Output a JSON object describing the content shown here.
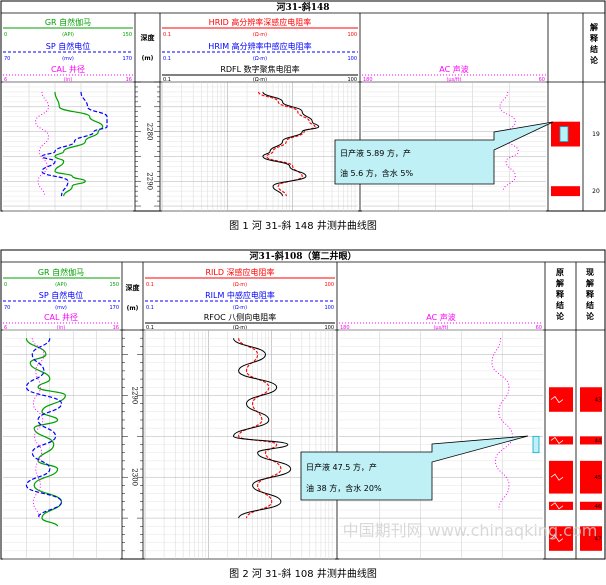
{
  "charts": [
    {
      "title": "河31-斜148",
      "caption": "图 1 河 31-斜 148 井测井曲线图",
      "headers": {
        "gr": {
          "label": "GR 自然伽马",
          "unit": "(API)",
          "min": "0",
          "max": "150"
        },
        "sp": {
          "label": "SP 自然电位",
          "unit": "(mv)",
          "min": "70",
          "max": "170"
        },
        "cal": {
          "label": "CAL 井径",
          "unit": "(in)",
          "min": "6",
          "max": "16"
        },
        "depth": {
          "label": "深度",
          "unit": "(m)"
        },
        "rhigh": {
          "label": "HRID 高分辨率深感应电阻率",
          "unit": "(Ω·m)",
          "min": "0.1",
          "max": "100"
        },
        "rmid": {
          "label": "HRIM 高分辨率中感应电阻率",
          "unit": "(Ω·m)",
          "min": "0.1",
          "max": "100"
        },
        "rfoc": {
          "label": "RDFL 数字聚焦电阻率",
          "unit": "(Ω·m)",
          "min": "0.1",
          "max": "100"
        },
        "ac": {
          "label": "AC 声波",
          "unit": "(μs/ft)",
          "min": "180",
          "max": "60"
        },
        "interp": {
          "label": "解释结论"
        }
      },
      "depth_ticks": [
        "2280",
        "2290"
      ],
      "zones": [
        {
          "num": "19"
        },
        {
          "num": "20"
        }
      ],
      "annotation": {
        "line1": "日产液 5.89 方，产",
        "line2": "油 5.6 方，含水 5%"
      }
    },
    {
      "title": "河31-斜108（第二井眼）",
      "caption": "图 2 河 31-斜 108 井测井曲线图",
      "headers": {
        "gr": {
          "label": "GR 自然伽马",
          "unit": "(API)",
          "min": "0",
          "max": "150"
        },
        "sp": {
          "label": "SP 自然电位",
          "unit": "(mv)",
          "min": "70",
          "max": "170"
        },
        "cal": {
          "label": "CAL 井径",
          "unit": "(in)",
          "min": "6",
          "max": "16"
        },
        "depth": {
          "label": "深度",
          "unit": "(m)"
        },
        "rhigh": {
          "label": "RILD 深感应电阻率",
          "unit": "(Ω·m)",
          "min": "0.1",
          "max": "100"
        },
        "rmid": {
          "label": "RILM 中感应电阻率",
          "unit": "(Ω·m)",
          "min": "0.1",
          "max": "100"
        },
        "rfoc": {
          "label": "RFOC 八侧向电阻率",
          "unit": "(Ω·m)",
          "min": "0.1",
          "max": "100"
        },
        "ac": {
          "label": "AC 声波",
          "unit": "(μs/ft)",
          "min": "180",
          "max": "60"
        },
        "interp_orig": {
          "label": "原解释结论"
        },
        "interp_new": {
          "label": "现解释结论"
        }
      },
      "depth_ticks": [
        "2290",
        "2300"
      ],
      "zones": [
        {
          "num": "43"
        },
        {
          "num": "44"
        },
        {
          "num": "45"
        },
        {
          "num": "46"
        },
        {
          "num": "47"
        }
      ],
      "annotation": {
        "line1": "日产液 47.5 方，产",
        "line2": "油 38 方，含水 20%"
      }
    }
  ],
  "watermark": "中国期刊网 www.chinaqking.com",
  "colors": {
    "gr": "#00a000",
    "sp": "#0000ff",
    "cal": "#ff00ff",
    "rhigh": "#ff0000",
    "rfoc": "#000000",
    "zone": "#ff0000",
    "callout": "#bff0f5"
  },
  "chart_data": [
    {
      "type": "line",
      "well": "河31-斜148",
      "depth_range": [
        2270,
        2296
      ],
      "series": [
        {
          "name": "GR 自然伽马",
          "unit": "API",
          "range": [
            0,
            150
          ],
          "points": [
            [
              2272,
              60
            ],
            [
              2275,
              65
            ],
            [
              2277,
              100
            ],
            [
              2279,
              115
            ],
            [
              2280,
              110
            ],
            [
              2282,
              95
            ],
            [
              2284,
              70
            ],
            [
              2285,
              60
            ],
            [
              2286,
              70
            ],
            [
              2288,
              60
            ],
            [
              2289,
              80
            ],
            [
              2290,
              95
            ],
            [
              2291,
              80
            ],
            [
              2293,
              70
            ]
          ]
        },
        {
          "name": "SP 自然电位",
          "unit": "mv",
          "range": [
            70,
            170
          ],
          "points": [
            [
              2272,
              130
            ],
            [
              2275,
              135
            ],
            [
              2277,
              150
            ],
            [
              2279,
              150
            ],
            [
              2280,
              140
            ],
            [
              2282,
              125
            ],
            [
              2284,
              110
            ],
            [
              2285,
              100
            ],
            [
              2286,
              110
            ],
            [
              2288,
              100
            ],
            [
              2290,
              120
            ],
            [
              2293,
              115
            ]
          ]
        },
        {
          "name": "CAL 井径",
          "unit": "in",
          "range": [
            6,
            16
          ],
          "points": [
            [
              2272,
              9
            ],
            [
              2275,
              9.5
            ],
            [
              2278,
              8.5
            ],
            [
              2281,
              9.5
            ],
            [
              2284,
              8.8
            ],
            [
              2287,
              9.4
            ],
            [
              2290,
              8.7
            ],
            [
              2293,
              9.2
            ]
          ]
        },
        {
          "name": "HRID 高分辨率深感应电阻率",
          "unit": "Ω·m",
          "range": [
            0.1,
            100
          ],
          "log": true,
          "points": [
            [
              2272,
              3
            ],
            [
              2274,
              6
            ],
            [
              2276,
              12
            ],
            [
              2278,
              18
            ],
            [
              2279,
              22
            ],
            [
              2280,
              15
            ],
            [
              2282,
              8
            ],
            [
              2284,
              5
            ],
            [
              2285,
              4
            ],
            [
              2287,
              10
            ],
            [
              2289,
              14
            ],
            [
              2291,
              6
            ],
            [
              2293,
              8
            ]
          ]
        },
        {
          "name": "RDFL 数字聚焦电阻率",
          "unit": "Ω·m",
          "range": [
            0.1,
            100
          ],
          "log": true,
          "points": [
            [
              2272,
              3.5
            ],
            [
              2274,
              7
            ],
            [
              2276,
              14
            ],
            [
              2278,
              20
            ],
            [
              2279,
              25
            ],
            [
              2280,
              14
            ],
            [
              2282,
              7
            ],
            [
              2284,
              4.5
            ],
            [
              2285,
              3.5
            ],
            [
              2287,
              9
            ],
            [
              2289,
              16
            ],
            [
              2291,
              5
            ],
            [
              2293,
              7
            ]
          ]
        },
        {
          "name": "AC 声波",
          "unit": "μs/ft",
          "range": [
            180,
            60
          ],
          "points": [
            [
              2272,
              85
            ],
            [
              2275,
              90
            ],
            [
              2278,
              80
            ],
            [
              2281,
              88
            ],
            [
              2284,
              78
            ],
            [
              2286,
              86
            ],
            [
              2289,
              80
            ],
            [
              2292,
              88
            ]
          ]
        }
      ]
    },
    {
      "type": "line",
      "well": "河31-斜108（第二井眼）",
      "depth_range": [
        2282,
        2310
      ],
      "series": [
        {
          "name": "GR 自然伽马",
          "unit": "API",
          "range": [
            0,
            150
          ],
          "points": [
            [
              2283,
              30
            ],
            [
              2285,
              55
            ],
            [
              2286,
              35
            ],
            [
              2288,
              60
            ],
            [
              2289,
              45
            ],
            [
              2290,
              80
            ],
            [
              2292,
              50
            ],
            [
              2293,
              70
            ],
            [
              2294,
              40
            ],
            [
              2296,
              65
            ],
            [
              2298,
              45
            ],
            [
              2299,
              70
            ],
            [
              2301,
              40
            ],
            [
              2303,
              75
            ],
            [
              2305,
              50
            ],
            [
              2306,
              70
            ]
          ]
        },
        {
          "name": "SP 自然电位",
          "unit": "mv",
          "range": [
            70,
            170
          ],
          "points": [
            [
              2283,
              110
            ],
            [
              2285,
              95
            ],
            [
              2287,
              105
            ],
            [
              2289,
              90
            ],
            [
              2291,
              120
            ],
            [
              2293,
              100
            ],
            [
              2295,
              115
            ],
            [
              2297,
              95
            ],
            [
              2299,
              110
            ],
            [
              2301,
              90
            ],
            [
              2303,
              120
            ],
            [
              2305,
              100
            ]
          ]
        },
        {
          "name": "CAL 井径",
          "unit": "in",
          "range": [
            6,
            16
          ],
          "points": [
            [
              2283,
              8.5
            ],
            [
              2285,
              9.5
            ],
            [
              2287,
              8.8
            ],
            [
              2289,
              9.2
            ],
            [
              2291,
              8.6
            ],
            [
              2293,
              9.4
            ],
            [
              2295,
              8.7
            ],
            [
              2297,
              9.3
            ],
            [
              2299,
              8.8
            ],
            [
              2301,
              9.2
            ],
            [
              2303,
              8.6
            ],
            [
              2305,
              9.1
            ]
          ]
        },
        {
          "name": "RILD 深感应电阻率",
          "unit": "Ω·m",
          "range": [
            0.1,
            100
          ],
          "log": true,
          "points": [
            [
              2283,
              3
            ],
            [
              2285,
              6
            ],
            [
              2287,
              4
            ],
            [
              2289,
              9
            ],
            [
              2291,
              5
            ],
            [
              2293,
              7
            ],
            [
              2295,
              3
            ],
            [
              2296,
              12
            ],
            [
              2297,
              8
            ],
            [
              2299,
              14
            ],
            [
              2301,
              6
            ],
            [
              2303,
              10
            ],
            [
              2305,
              4
            ]
          ]
        },
        {
          "name": "RFOC 八侧向电阻率",
          "unit": "Ω·m",
          "range": [
            0.1,
            100
          ],
          "log": true,
          "points": [
            [
              2283,
              2.5
            ],
            [
              2285,
              8
            ],
            [
              2287,
              3
            ],
            [
              2289,
              12
            ],
            [
              2291,
              4
            ],
            [
              2293,
              9
            ],
            [
              2295,
              2.5
            ],
            [
              2296,
              18
            ],
            [
              2297,
              6
            ],
            [
              2299,
              20
            ],
            [
              2301,
              5
            ],
            [
              2303,
              14
            ],
            [
              2305,
              3
            ]
          ]
        },
        {
          "name": "AC 声波",
          "unit": "μs/ft",
          "range": [
            180,
            60
          ],
          "points": [
            [
              2283,
              85
            ],
            [
              2286,
              90
            ],
            [
              2289,
              80
            ],
            [
              2292,
              86
            ],
            [
              2295,
              78
            ],
            [
              2298,
              88
            ],
            [
              2301,
              80
            ],
            [
              2304,
              86
            ]
          ]
        }
      ]
    }
  ]
}
